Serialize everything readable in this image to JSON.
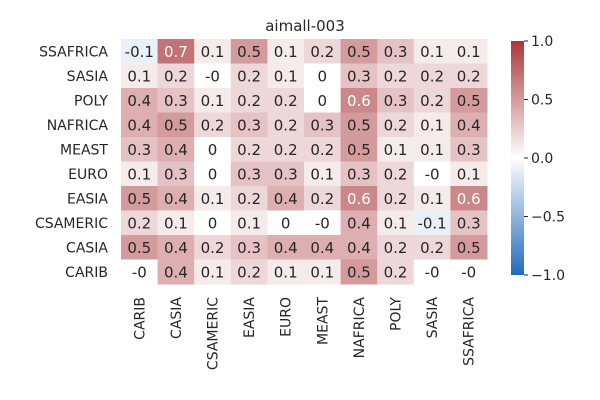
{
  "chart_data": {
    "type": "heatmap",
    "title": "aimall-003",
    "xlabel": "",
    "ylabel": "",
    "x_categories": [
      "CARIB",
      "CASIA",
      "CSAMERIC",
      "EASIA",
      "EURO",
      "MEAST",
      "NAFRICA",
      "POLY",
      "SASIA",
      "SSAFRICA"
    ],
    "y_categories": [
      "SSAFRICA",
      "SASIA",
      "POLY",
      "NAFRICA",
      "MEAST",
      "EURO",
      "EASIA",
      "CSAMERIC",
      "CASIA",
      "CARIB"
    ],
    "values": [
      [
        -0.1,
        0.7,
        0.1,
        0.5,
        0.1,
        0.2,
        0.5,
        0.3,
        0.1,
        0.1
      ],
      [
        0.1,
        0.2,
        -0.0,
        0.2,
        0.1,
        0.0,
        0.3,
        0.2,
        0.2,
        0.2
      ],
      [
        0.4,
        0.3,
        0.1,
        0.2,
        0.2,
        0.0,
        0.6,
        0.3,
        0.2,
        0.5
      ],
      [
        0.4,
        0.5,
        0.2,
        0.3,
        0.2,
        0.3,
        0.5,
        0.2,
        0.1,
        0.4
      ],
      [
        0.3,
        0.4,
        0.0,
        0.2,
        0.2,
        0.2,
        0.5,
        0.1,
        0.1,
        0.3
      ],
      [
        0.1,
        0.3,
        0.0,
        0.3,
        0.3,
        0.1,
        0.3,
        0.2,
        -0.0,
        0.1
      ],
      [
        0.5,
        0.4,
        0.1,
        0.2,
        0.4,
        0.2,
        0.6,
        0.2,
        0.1,
        0.6
      ],
      [
        0.2,
        0.1,
        0.0,
        0.1,
        0.0,
        -0.0,
        0.4,
        0.1,
        -0.1,
        0.3
      ],
      [
        0.5,
        0.4,
        0.2,
        0.3,
        0.4,
        0.4,
        0.4,
        0.2,
        0.2,
        0.5
      ],
      [
        -0.0,
        0.4,
        0.1,
        0.2,
        0.1,
        0.1,
        0.5,
        0.2,
        -0.0,
        -0.0
      ]
    ],
    "labels": [
      [
        "-0.1",
        "0.7",
        "0.1",
        "0.5",
        "0.1",
        "0.2",
        "0.5",
        "0.3",
        "0.1",
        "0.1"
      ],
      [
        "0.1",
        "0.2",
        "-0",
        "0.2",
        "0.1",
        "0",
        "0.3",
        "0.2",
        "0.2",
        "0.2"
      ],
      [
        "0.4",
        "0.3",
        "0.1",
        "0.2",
        "0.2",
        "0",
        "0.6",
        "0.3",
        "0.2",
        "0.5"
      ],
      [
        "0.4",
        "0.5",
        "0.2",
        "0.3",
        "0.2",
        "0.3",
        "0.5",
        "0.2",
        "0.1",
        "0.4"
      ],
      [
        "0.3",
        "0.4",
        "0",
        "0.2",
        "0.2",
        "0.2",
        "0.5",
        "0.1",
        "0.1",
        "0.3"
      ],
      [
        "0.1",
        "0.3",
        "0",
        "0.3",
        "0.3",
        "0.1",
        "0.3",
        "0.2",
        "-0",
        "0.1"
      ],
      [
        "0.5",
        "0.4",
        "0.1",
        "0.2",
        "0.4",
        "0.2",
        "0.6",
        "0.2",
        "0.1",
        "0.6"
      ],
      [
        "0.2",
        "0.1",
        "0",
        "0.1",
        "0",
        "-0",
        "0.4",
        "0.1",
        "-0.1",
        "0.3"
      ],
      [
        "0.5",
        "0.4",
        "0.2",
        "0.3",
        "0.4",
        "0.4",
        "0.4",
        "0.2",
        "0.2",
        "0.5"
      ],
      [
        "-0",
        "0.4",
        "0.1",
        "0.2",
        "0.1",
        "0.1",
        "0.5",
        "0.2",
        "-0",
        "-0"
      ]
    ],
    "colorscale": {
      "name": "vlag",
      "vmin": -1.0,
      "vmax": 1.0,
      "low_color": "#2369bd",
      "mid_color": "#ffffff",
      "high_color": "#a9373b",
      "ticks": [
        1.0,
        0.5,
        0.0,
        -0.5,
        -1.0
      ],
      "tick_labels": [
        "1.0",
        "0.5",
        "0.0",
        "−0.5",
        "−1.0"
      ]
    },
    "grid": false,
    "legend": "colorbar-right"
  }
}
